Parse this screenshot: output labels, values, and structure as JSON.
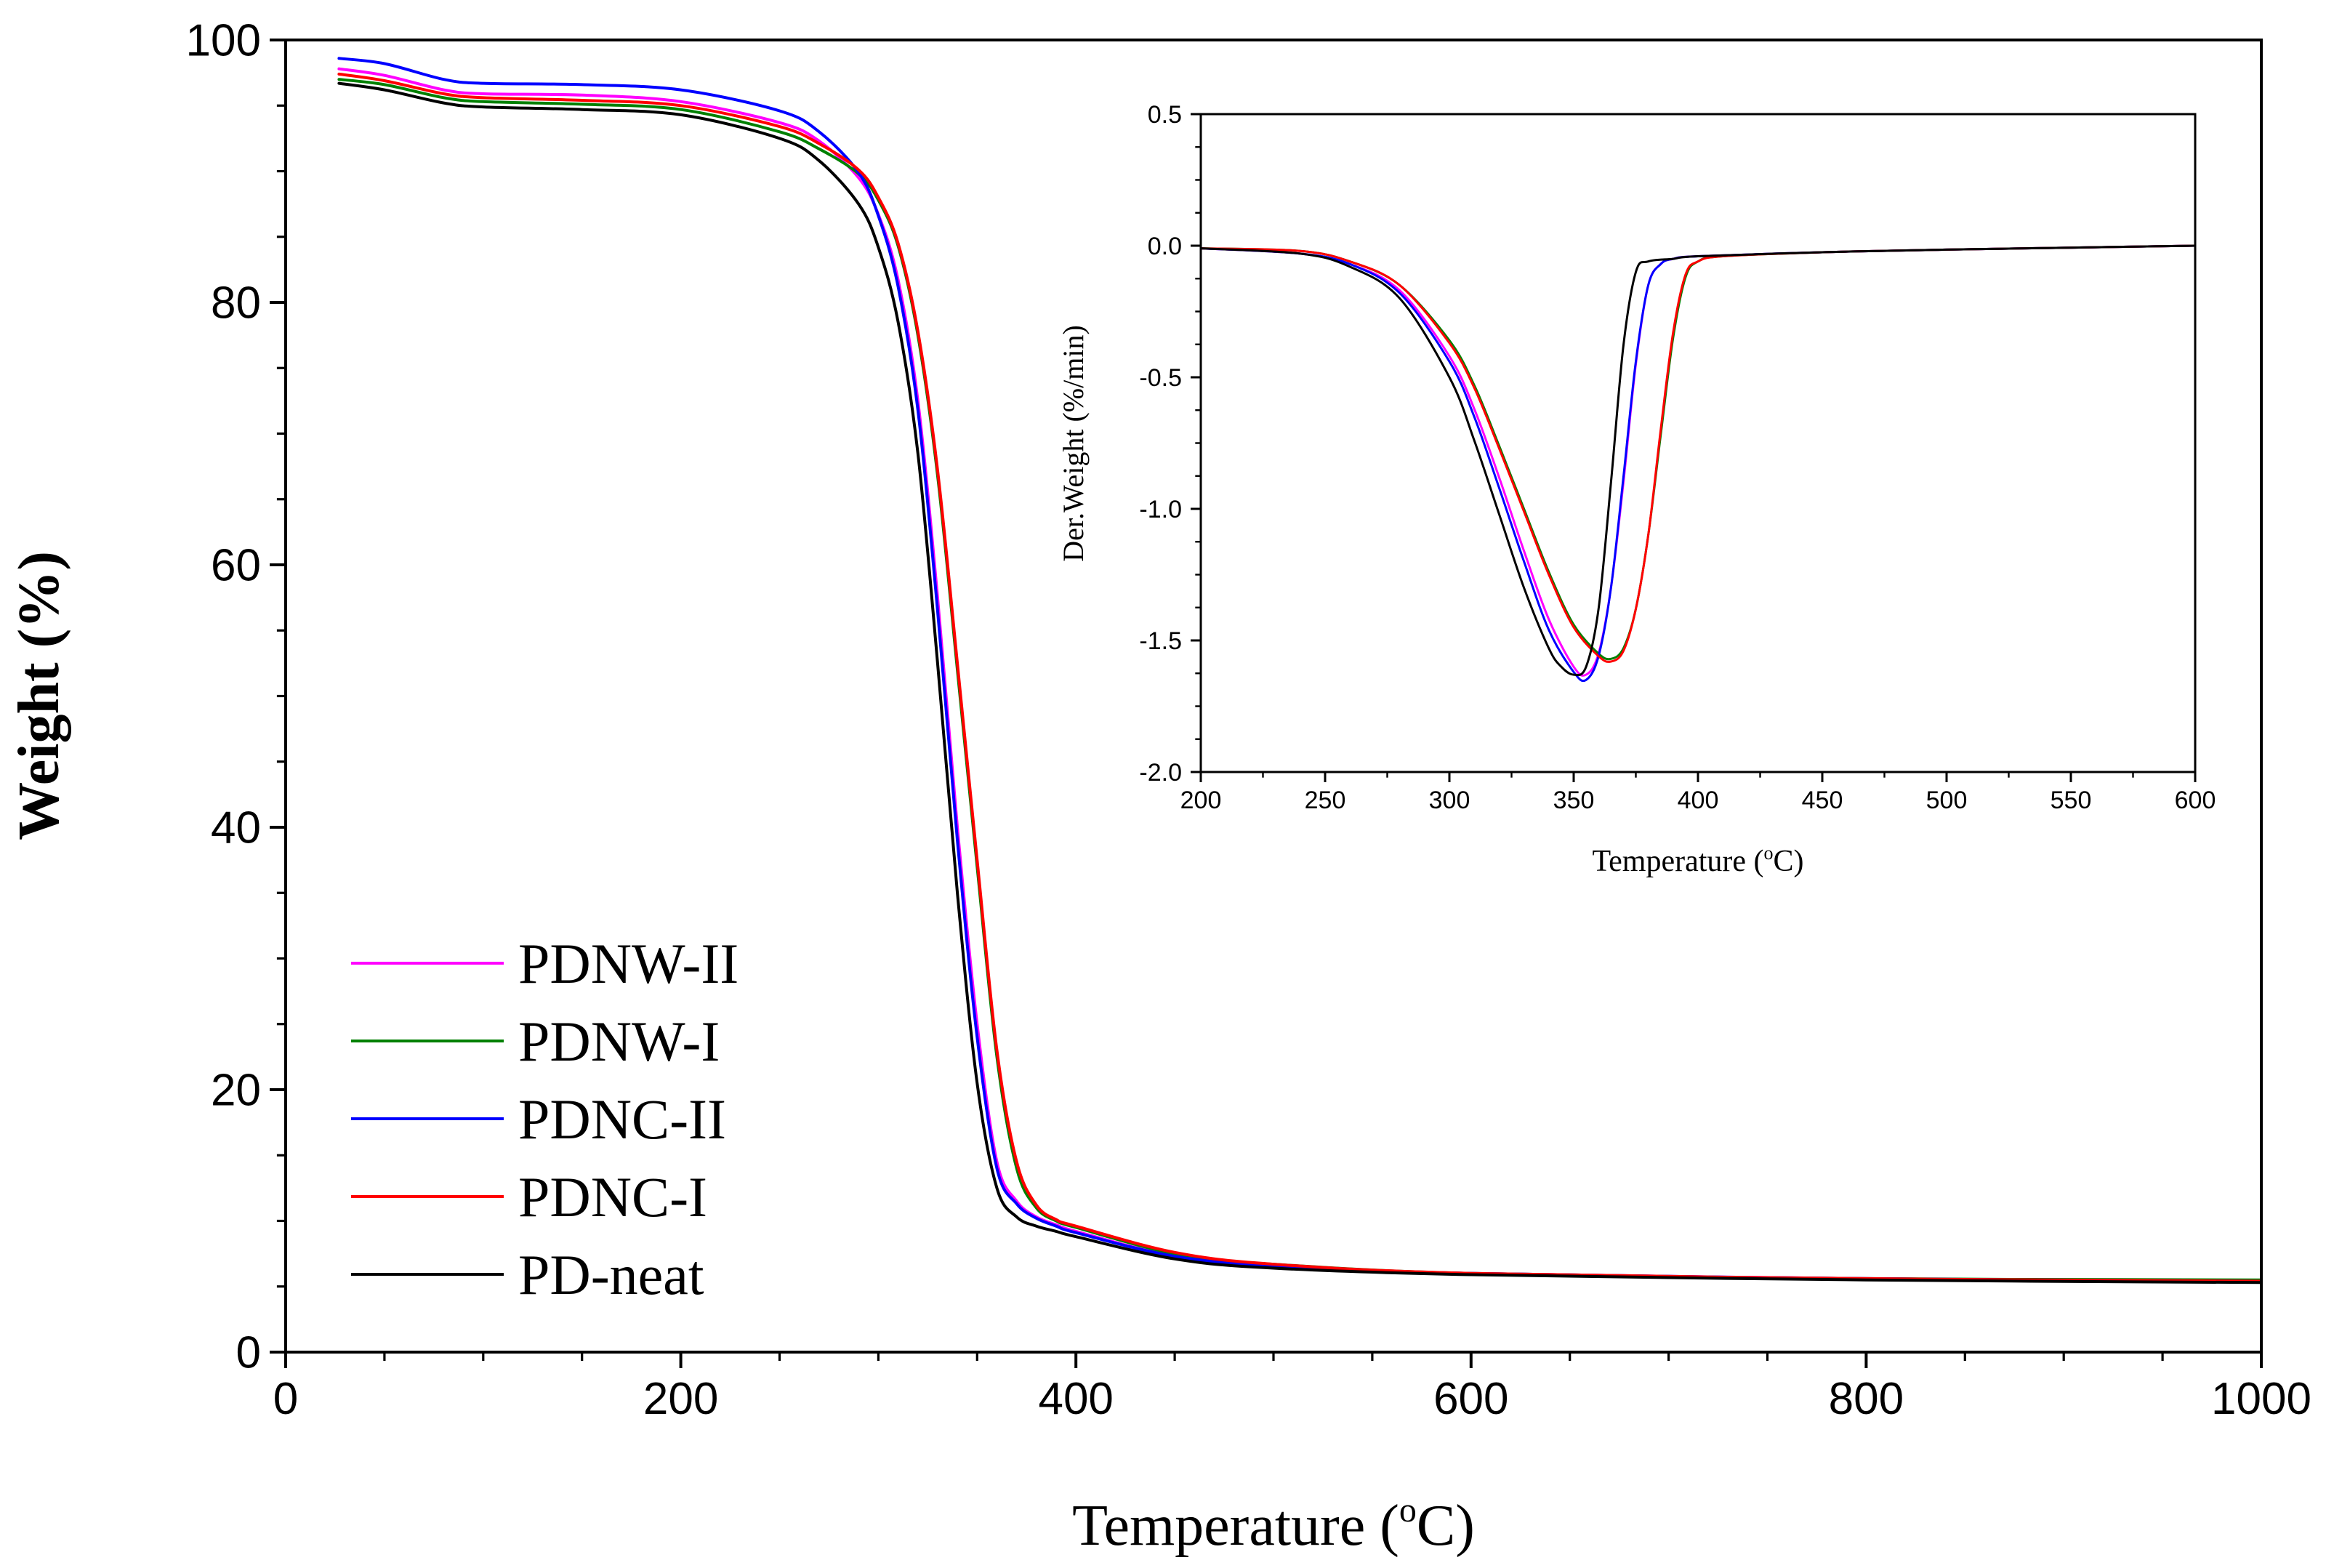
{
  "chart_data": [
    {
      "type": "line",
      "name": "main-tga",
      "xlabel": "Temperature",
      "xunit_pre": "(",
      "xunit_sup": "o",
      "xunit_post": "C)",
      "ylabel": "Weight (%)",
      "xlim": [
        0,
        1000
      ],
      "ylim": [
        0,
        100
      ],
      "xticks": [
        0,
        200,
        400,
        600,
        800,
        1000
      ],
      "yticks": [
        0,
        20,
        40,
        60,
        80,
        100
      ],
      "xtick_labels": [
        "0",
        "200",
        "400",
        "600",
        "800",
        "1000"
      ],
      "ytick_labels": [
        "0",
        "20",
        "40",
        "60",
        "80",
        "100"
      ],
      "legend_position": "bottom-left",
      "series": [
        {
          "name": "PDNW-II",
          "color": "#ff00ff",
          "x": [
            27,
            50,
            80,
            100,
            150,
            200,
            250,
            270,
            290,
            300,
            310,
            320,
            330,
            340,
            350,
            360,
            370,
            380,
            390,
            400,
            450,
            500,
            600,
            800,
            1000
          ],
          "y": [
            97.8,
            97.3,
            96.2,
            95.9,
            95.8,
            95.3,
            93.7,
            92.3,
            89.5,
            86.7,
            81.7,
            72.5,
            57.5,
            40,
            25,
            14.5,
            11.5,
            10.3,
            9.7,
            9.2,
            7.3,
            6.6,
            6.0,
            5.6,
            5.4
          ]
        },
        {
          "name": "PDNW-I",
          "color": "#008000",
          "x": [
            27,
            50,
            80,
            100,
            150,
            200,
            250,
            270,
            290,
            300,
            310,
            320,
            330,
            340,
            350,
            360,
            370,
            380,
            390,
            400,
            450,
            500,
            600,
            800,
            1000
          ],
          "y": [
            97.0,
            96.6,
            95.6,
            95.3,
            95.1,
            94.7,
            93.0,
            91.7,
            89.8,
            87.8,
            84.3,
            77.5,
            66.8,
            52,
            37,
            22.5,
            14,
            11,
            10,
            9.5,
            7.5,
            6.7,
            6.0,
            5.6,
            5.5
          ]
        },
        {
          "name": "PDNC-II",
          "color": "#0000ff",
          "x": [
            27,
            50,
            80,
            100,
            150,
            200,
            250,
            270,
            290,
            300,
            310,
            320,
            330,
            340,
            350,
            360,
            370,
            380,
            390,
            400,
            450,
            500,
            600,
            800,
            1000
          ],
          "y": [
            98.6,
            98.2,
            97.0,
            96.7,
            96.6,
            96.2,
            94.6,
            93.0,
            89.9,
            86.6,
            81.2,
            71.8,
            56.5,
            39,
            24,
            14,
            11.3,
            10.2,
            9.6,
            9.1,
            7.3,
            6.6,
            6.0,
            5.6,
            5.4
          ]
        },
        {
          "name": "PDNC-I",
          "color": "#ff0000",
          "x": [
            27,
            50,
            80,
            100,
            150,
            200,
            250,
            270,
            290,
            300,
            310,
            320,
            330,
            340,
            350,
            360,
            370,
            380,
            390,
            400,
            450,
            500,
            600,
            800,
            1000
          ],
          "y": [
            97.4,
            96.9,
            95.9,
            95.6,
            95.4,
            95.0,
            93.4,
            92.1,
            90.1,
            88.0,
            84.5,
            77.8,
            67.2,
            52.5,
            37.5,
            23,
            14.5,
            11.2,
            10.1,
            9.6,
            7.6,
            6.7,
            6.0,
            5.6,
            5.4
          ]
        },
        {
          "name": "PD-neat",
          "color": "#000000",
          "x": [
            27,
            50,
            80,
            100,
            150,
            200,
            250,
            270,
            290,
            300,
            310,
            320,
            330,
            340,
            350,
            360,
            370,
            380,
            390,
            400,
            450,
            500,
            600,
            800,
            1000
          ],
          "y": [
            96.7,
            96.2,
            95.2,
            94.9,
            94.7,
            94.3,
            92.5,
            90.8,
            87.5,
            84.2,
            78.5,
            68.5,
            52.5,
            35,
            20.5,
            12.5,
            10.3,
            9.6,
            9.2,
            8.8,
            7.1,
            6.4,
            5.9,
            5.5,
            5.3
          ]
        }
      ]
    },
    {
      "type": "line",
      "name": "inset-dtg",
      "xlabel": "Temperature",
      "xunit_pre": "(",
      "xunit_sup": "o",
      "xunit_post": "C)",
      "ylabel": "Der.Weight (%/min)",
      "xlim": [
        200,
        600
      ],
      "ylim": [
        -2.0,
        0.5
      ],
      "xticks": [
        200,
        250,
        300,
        350,
        400,
        450,
        500,
        550,
        600
      ],
      "yticks": [
        -2.0,
        -1.5,
        -1.0,
        -0.5,
        0.0,
        0.5
      ],
      "xtick_labels": [
        "200",
        "250",
        "300",
        "350",
        "400",
        "450",
        "500",
        "550",
        "600"
      ],
      "ytick_labels": [
        "-2.0",
        "-1.5",
        "-1.0",
        "-0.5",
        "0.0",
        "0.5"
      ],
      "series": [
        {
          "name": "PDNW-II",
          "color": "#ff00ff",
          "x": [
            200,
            240,
            260,
            280,
            300,
            310,
            320,
            330,
            340,
            350,
            355,
            360,
            365,
            370,
            375,
            380,
            385,
            390,
            400,
            450,
            500,
            600
          ],
          "y": [
            -0.01,
            -0.03,
            -0.07,
            -0.17,
            -0.42,
            -0.62,
            -0.88,
            -1.16,
            -1.42,
            -1.6,
            -1.63,
            -1.55,
            -1.3,
            -0.9,
            -0.45,
            -0.15,
            -0.07,
            -0.05,
            -0.04,
            -0.025,
            -0.015,
            0.0
          ]
        },
        {
          "name": "PDNW-I",
          "color": "#008000",
          "x": [
            200,
            240,
            260,
            280,
            300,
            310,
            320,
            330,
            340,
            350,
            360,
            365,
            370,
            375,
            380,
            385,
            390,
            395,
            400,
            410,
            450,
            500,
            600
          ],
          "y": [
            -0.01,
            -0.02,
            -0.06,
            -0.15,
            -0.36,
            -0.53,
            -0.76,
            -1.0,
            -1.24,
            -1.44,
            -1.55,
            -1.57,
            -1.53,
            -1.38,
            -1.1,
            -0.72,
            -0.35,
            -0.12,
            -0.06,
            -0.04,
            -0.025,
            -0.015,
            0.0
          ]
        },
        {
          "name": "PDNC-II",
          "color": "#0000ff",
          "x": [
            200,
            240,
            260,
            280,
            300,
            310,
            320,
            330,
            340,
            350,
            355,
            360,
            365,
            370,
            375,
            380,
            385,
            390,
            400,
            450,
            500,
            600
          ],
          "y": [
            -0.01,
            -0.03,
            -0.07,
            -0.18,
            -0.44,
            -0.65,
            -0.92,
            -1.2,
            -1.46,
            -1.62,
            -1.65,
            -1.56,
            -1.3,
            -0.88,
            -0.44,
            -0.15,
            -0.07,
            -0.05,
            -0.04,
            -0.025,
            -0.015,
            0.0
          ]
        },
        {
          "name": "PDNC-I",
          "color": "#ff0000",
          "x": [
            200,
            240,
            260,
            280,
            300,
            310,
            320,
            330,
            340,
            350,
            360,
            365,
            370,
            375,
            380,
            385,
            390,
            395,
            400,
            410,
            450,
            500,
            600
          ],
          "y": [
            -0.01,
            -0.02,
            -0.06,
            -0.15,
            -0.37,
            -0.54,
            -0.77,
            -1.01,
            -1.25,
            -1.45,
            -1.56,
            -1.58,
            -1.54,
            -1.38,
            -1.1,
            -0.7,
            -0.33,
            -0.11,
            -0.06,
            -0.04,
            -0.025,
            -0.015,
            0.0
          ]
        },
        {
          "name": "PD-neat",
          "color": "#000000",
          "x": [
            200,
            240,
            260,
            280,
            300,
            310,
            320,
            330,
            340,
            345,
            350,
            355,
            360,
            365,
            370,
            375,
            380,
            390,
            400,
            450,
            500,
            600
          ],
          "y": [
            -0.01,
            -0.03,
            -0.08,
            -0.2,
            -0.5,
            -0.74,
            -1.02,
            -1.3,
            -1.53,
            -1.6,
            -1.63,
            -1.6,
            -1.38,
            -0.9,
            -0.38,
            -0.1,
            -0.06,
            -0.05,
            -0.04,
            -0.025,
            -0.015,
            0.0
          ]
        }
      ]
    }
  ]
}
